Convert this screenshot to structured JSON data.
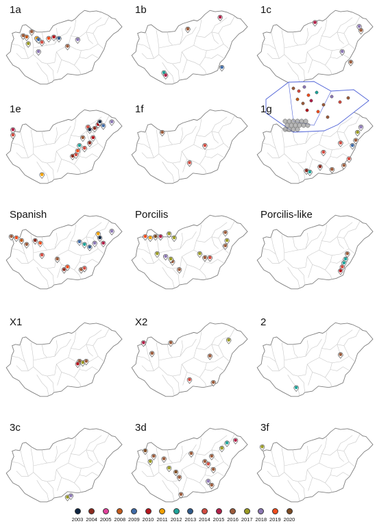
{
  "colors": {
    "map_outline": "#7d7d7d",
    "county_border": "#c8c8c8",
    "inset_border": "#4b5fd6",
    "cluster_gray": "#9a9a9a"
  },
  "legend": [
    {
      "year": "2003",
      "color": "#0c2340"
    },
    {
      "year": "2004",
      "color": "#8b2a1e"
    },
    {
      "year": "2005",
      "color": "#e0409a"
    },
    {
      "year": "2008",
      "color": "#c25a1c"
    },
    {
      "year": "2009",
      "color": "#3e6aa6"
    },
    {
      "year": "2010",
      "color": "#b3141c"
    },
    {
      "year": "2011",
      "color": "#f2a100"
    },
    {
      "year": "2012",
      "color": "#1ea39a"
    },
    {
      "year": "2013",
      "color": "#2f5a8a"
    },
    {
      "year": "2014",
      "color": "#d24b40"
    },
    {
      "year": "2015",
      "color": "#b02048"
    },
    {
      "year": "2016",
      "color": "#9b5b3b"
    },
    {
      "year": "2017",
      "color": "#9a9a24"
    },
    {
      "year": "2018",
      "color": "#8c78b4"
    },
    {
      "year": "2019",
      "color": "#f04c1c"
    },
    {
      "year": "2020",
      "color": "#7b4a22"
    }
  ],
  "panels": [
    {
      "label": "1a",
      "markers": [
        {
          "lon": 17.1,
          "lat": 47.6,
          "year": "2016"
        },
        {
          "lon": 17.3,
          "lat": 47.55,
          "year": "2008"
        },
        {
          "lon": 17.6,
          "lat": 47.75,
          "year": "2016"
        },
        {
          "lon": 17.9,
          "lat": 47.5,
          "year": "2011"
        },
        {
          "lon": 18.0,
          "lat": 47.45,
          "year": "2009"
        },
        {
          "lon": 18.2,
          "lat": 47.35,
          "year": "2014"
        },
        {
          "lon": 18.6,
          "lat": 47.5,
          "year": "2019"
        },
        {
          "lon": 18.9,
          "lat": 47.55,
          "year": "2010"
        },
        {
          "lon": 19.2,
          "lat": 47.5,
          "year": "2013"
        },
        {
          "lon": 19.7,
          "lat": 47.2,
          "year": "2016"
        },
        {
          "lon": 18.0,
          "lat": 47.0,
          "year": "2018"
        },
        {
          "lon": 20.3,
          "lat": 47.45,
          "year": "2018"
        },
        {
          "lon": 17.4,
          "lat": 47.3,
          "year": "2017"
        }
      ]
    },
    {
      "label": "1b",
      "markers": [
        {
          "lon": 19.4,
          "lat": 47.85,
          "year": "2016"
        },
        {
          "lon": 21.3,
          "lat": 48.3,
          "year": "2015"
        },
        {
          "lon": 18.0,
          "lat": 46.2,
          "year": "2012"
        },
        {
          "lon": 18.1,
          "lat": 46.1,
          "year": "2015"
        },
        {
          "lon": 21.4,
          "lat": 46.4,
          "year": "2009"
        }
      ]
    },
    {
      "label": "1c",
      "markers": [
        {
          "lon": 19.5,
          "lat": 48.1,
          "year": "2015"
        },
        {
          "lon": 22.1,
          "lat": 47.95,
          "year": "2018"
        },
        {
          "lon": 22.2,
          "lat": 47.8,
          "year": "2016"
        },
        {
          "lon": 21.1,
          "lat": 47.0,
          "year": "2018"
        },
        {
          "lon": 21.6,
          "lat": 46.6,
          "year": "2016"
        }
      ]
    },
    {
      "label": "1e",
      "markers": [
        {
          "lon": 16.5,
          "lat": 47.8,
          "year": "2015"
        },
        {
          "lon": 16.5,
          "lat": 47.6,
          "year": "2014"
        },
        {
          "lon": 20.9,
          "lat": 47.9,
          "year": "2014"
        },
        {
          "lon": 21.0,
          "lat": 47.8,
          "year": "2003"
        },
        {
          "lon": 21.3,
          "lat": 47.85,
          "year": "2004"
        },
        {
          "lon": 21.5,
          "lat": 48.0,
          "year": "2010"
        },
        {
          "lon": 21.6,
          "lat": 48.1,
          "year": "2003"
        },
        {
          "lon": 21.8,
          "lat": 47.95,
          "year": "2009"
        },
        {
          "lon": 22.3,
          "lat": 48.1,
          "year": "2018"
        },
        {
          "lon": 20.6,
          "lat": 47.5,
          "year": "2016"
        },
        {
          "lon": 20.4,
          "lat": 47.2,
          "year": "2012"
        },
        {
          "lon": 20.3,
          "lat": 47.0,
          "year": "2019"
        },
        {
          "lon": 20.7,
          "lat": 47.1,
          "year": "2014"
        },
        {
          "lon": 21.0,
          "lat": 47.3,
          "year": "2004"
        },
        {
          "lon": 21.2,
          "lat": 47.5,
          "year": "2010"
        },
        {
          "lon": 20.0,
          "lat": 46.8,
          "year": "2004"
        },
        {
          "lon": 20.2,
          "lat": 46.85,
          "year": "2014"
        },
        {
          "lon": 18.2,
          "lat": 46.1,
          "year": "2011"
        }
      ]
    },
    {
      "label": "1f",
      "markers": [
        {
          "lon": 17.9,
          "lat": 47.7,
          "year": "2016"
        },
        {
          "lon": 20.4,
          "lat": 47.2,
          "year": "2014"
        },
        {
          "lon": 19.5,
          "lat": 46.55,
          "year": "2014"
        }
      ]
    },
    {
      "label": "1g",
      "inset": true,
      "markers": [
        {
          "lon": 19.0,
          "lat": 46.25,
          "year": "2004"
        },
        {
          "lon": 19.2,
          "lat": 46.2,
          "year": "2012"
        },
        {
          "lon": 20.0,
          "lat": 46.95,
          "year": "2014"
        },
        {
          "lon": 21.0,
          "lat": 47.3,
          "year": "2014"
        },
        {
          "lon": 21.7,
          "lat": 47.2,
          "year": "2009"
        },
        {
          "lon": 21.9,
          "lat": 47.4,
          "year": "2016"
        },
        {
          "lon": 22.0,
          "lat": 47.7,
          "year": "2017"
        },
        {
          "lon": 22.2,
          "lat": 47.9,
          "year": "2018"
        },
        {
          "lon": 21.5,
          "lat": 46.7,
          "year": "2014"
        },
        {
          "lon": 19.8,
          "lat": 46.4,
          "year": "2004"
        },
        {
          "lon": 20.5,
          "lat": 46.3,
          "year": "2016"
        },
        {
          "lon": 21.2,
          "lat": 46.45,
          "year": "2016"
        }
      ]
    },
    {
      "label": "Spanish",
      "markers": [
        {
          "lon": 16.4,
          "lat": 47.75,
          "year": "2016"
        },
        {
          "lon": 16.7,
          "lat": 47.7,
          "year": "2019"
        },
        {
          "lon": 17.0,
          "lat": 47.6,
          "year": "2008"
        },
        {
          "lon": 17.3,
          "lat": 47.45,
          "year": "2016"
        },
        {
          "lon": 17.8,
          "lat": 47.6,
          "year": "2004"
        },
        {
          "lon": 18.1,
          "lat": 47.5,
          "year": "2019"
        },
        {
          "lon": 18.2,
          "lat": 47.05,
          "year": "2014"
        },
        {
          "lon": 19.1,
          "lat": 46.9,
          "year": "2016"
        },
        {
          "lon": 19.5,
          "lat": 46.5,
          "year": "2004"
        },
        {
          "lon": 19.7,
          "lat": 46.6,
          "year": "2019"
        },
        {
          "lon": 20.5,
          "lat": 46.5,
          "year": "2016"
        },
        {
          "lon": 20.7,
          "lat": 46.55,
          "year": "2014"
        },
        {
          "lon": 20.4,
          "lat": 47.55,
          "year": "2009"
        },
        {
          "lon": 20.7,
          "lat": 47.45,
          "year": "2012"
        },
        {
          "lon": 21.0,
          "lat": 47.35,
          "year": "2013"
        },
        {
          "lon": 21.3,
          "lat": 47.5,
          "year": "2018"
        },
        {
          "lon": 21.5,
          "lat": 47.85,
          "year": "2011"
        },
        {
          "lon": 21.6,
          "lat": 47.7,
          "year": "2003"
        },
        {
          "lon": 21.8,
          "lat": 47.5,
          "year": "2015"
        },
        {
          "lon": 22.3,
          "lat": 47.95,
          "year": "2018"
        }
      ]
    },
    {
      "label": "Porcilis",
      "markers": [
        {
          "lon": 16.9,
          "lat": 47.75,
          "year": "2019"
        },
        {
          "lon": 17.2,
          "lat": 47.7,
          "year": "2011"
        },
        {
          "lon": 17.5,
          "lat": 47.75,
          "year": "2020"
        },
        {
          "lon": 17.8,
          "lat": 47.75,
          "year": "2015"
        },
        {
          "lon": 18.3,
          "lat": 47.85,
          "year": "2017"
        },
        {
          "lon": 18.6,
          "lat": 47.7,
          "year": "2017"
        },
        {
          "lon": 17.6,
          "lat": 47.1,
          "year": "2017"
        },
        {
          "lon": 18.1,
          "lat": 47.0,
          "year": "2018"
        },
        {
          "lon": 18.5,
          "lat": 46.8,
          "year": "2016"
        },
        {
          "lon": 20.1,
          "lat": 47.1,
          "year": "2017"
        },
        {
          "lon": 20.4,
          "lat": 46.95,
          "year": "2016"
        },
        {
          "lon": 20.7,
          "lat": 46.95,
          "year": "2014"
        },
        {
          "lon": 21.6,
          "lat": 47.9,
          "year": "2016"
        },
        {
          "lon": 21.7,
          "lat": 47.6,
          "year": "2017"
        },
        {
          "lon": 21.6,
          "lat": 47.4,
          "year": "2016"
        },
        {
          "lon": 18.9,
          "lat": 46.5,
          "year": "2016"
        },
        {
          "lon": 18.4,
          "lat": 46.9,
          "year": "2017"
        }
      ]
    },
    {
      "label": "Porcilis-like",
      "markers": [
        {
          "lon": 21.4,
          "lat": 47.1,
          "year": "2016"
        },
        {
          "lon": 21.3,
          "lat": 46.9,
          "year": "2012"
        },
        {
          "lon": 21.2,
          "lat": 46.75,
          "year": "2012"
        },
        {
          "lon": 21.1,
          "lat": 46.6,
          "year": "2014"
        },
        {
          "lon": 21.0,
          "lat": 46.45,
          "year": "2010"
        }
      ]
    },
    {
      "label": "X1",
      "markers": [
        {
          "lon": 20.4,
          "lat": 47.1,
          "year": "2016"
        },
        {
          "lon": 20.3,
          "lat": 47.0,
          "year": "2010"
        },
        {
          "lon": 20.6,
          "lat": 47.05,
          "year": "2017"
        },
        {
          "lon": 20.8,
          "lat": 47.1,
          "year": "2016"
        }
      ]
    },
    {
      "label": "X2",
      "markers": [
        {
          "lon": 16.8,
          "lat": 47.8,
          "year": "2015"
        },
        {
          "lon": 17.3,
          "lat": 47.4,
          "year": "2016"
        },
        {
          "lon": 18.4,
          "lat": 47.8,
          "year": "2016"
        },
        {
          "lon": 20.7,
          "lat": 47.3,
          "year": "2016"
        },
        {
          "lon": 21.8,
          "lat": 47.9,
          "year": "2017"
        },
        {
          "lon": 19.5,
          "lat": 46.4,
          "year": "2014"
        },
        {
          "lon": 20.9,
          "lat": 46.3,
          "year": "2016"
        }
      ]
    },
    {
      "label": "2",
      "markers": [
        {
          "lon": 21.0,
          "lat": 47.35,
          "year": "2016"
        },
        {
          "lon": 18.4,
          "lat": 46.1,
          "year": "2012"
        }
      ]
    },
    {
      "label": "3c",
      "markers": [
        {
          "lon": 19.7,
          "lat": 45.95,
          "year": "2017"
        },
        {
          "lon": 19.9,
          "lat": 46.0,
          "year": "2018"
        }
      ]
    },
    {
      "label": "3d",
      "markers": [
        {
          "lon": 16.9,
          "lat": 47.7,
          "year": "2020"
        },
        {
          "lon": 17.4,
          "lat": 47.5,
          "year": "2016"
        },
        {
          "lon": 17.2,
          "lat": 47.3,
          "year": "2017"
        },
        {
          "lon": 18.0,
          "lat": 47.4,
          "year": "2016"
        },
        {
          "lon": 18.3,
          "lat": 47.05,
          "year": "2017"
        },
        {
          "lon": 18.9,
          "lat": 46.7,
          "year": "2016"
        },
        {
          "lon": 18.7,
          "lat": 46.9,
          "year": "2020"
        },
        {
          "lon": 20.4,
          "lat": 47.3,
          "year": "2016"
        },
        {
          "lon": 20.6,
          "lat": 47.2,
          "year": "2014"
        },
        {
          "lon": 20.9,
          "lat": 47.0,
          "year": "2016"
        },
        {
          "lon": 20.8,
          "lat": 47.5,
          "year": "2016"
        },
        {
          "lon": 21.4,
          "lat": 47.8,
          "year": "2017"
        },
        {
          "lon": 21.7,
          "lat": 48.0,
          "year": "2012"
        },
        {
          "lon": 22.2,
          "lat": 48.1,
          "year": "2015"
        },
        {
          "lon": 19.0,
          "lat": 46.05,
          "year": "2016"
        },
        {
          "lon": 20.8,
          "lat": 46.4,
          "year": "2016"
        },
        {
          "lon": 20.6,
          "lat": 46.55,
          "year": "2018"
        },
        {
          "lon": 19.6,
          "lat": 47.6,
          "year": "2016"
        }
      ]
    },
    {
      "label": "3f",
      "markers": [
        {
          "lon": 16.4,
          "lat": 47.85,
          "year": "2017"
        }
      ]
    }
  ]
}
